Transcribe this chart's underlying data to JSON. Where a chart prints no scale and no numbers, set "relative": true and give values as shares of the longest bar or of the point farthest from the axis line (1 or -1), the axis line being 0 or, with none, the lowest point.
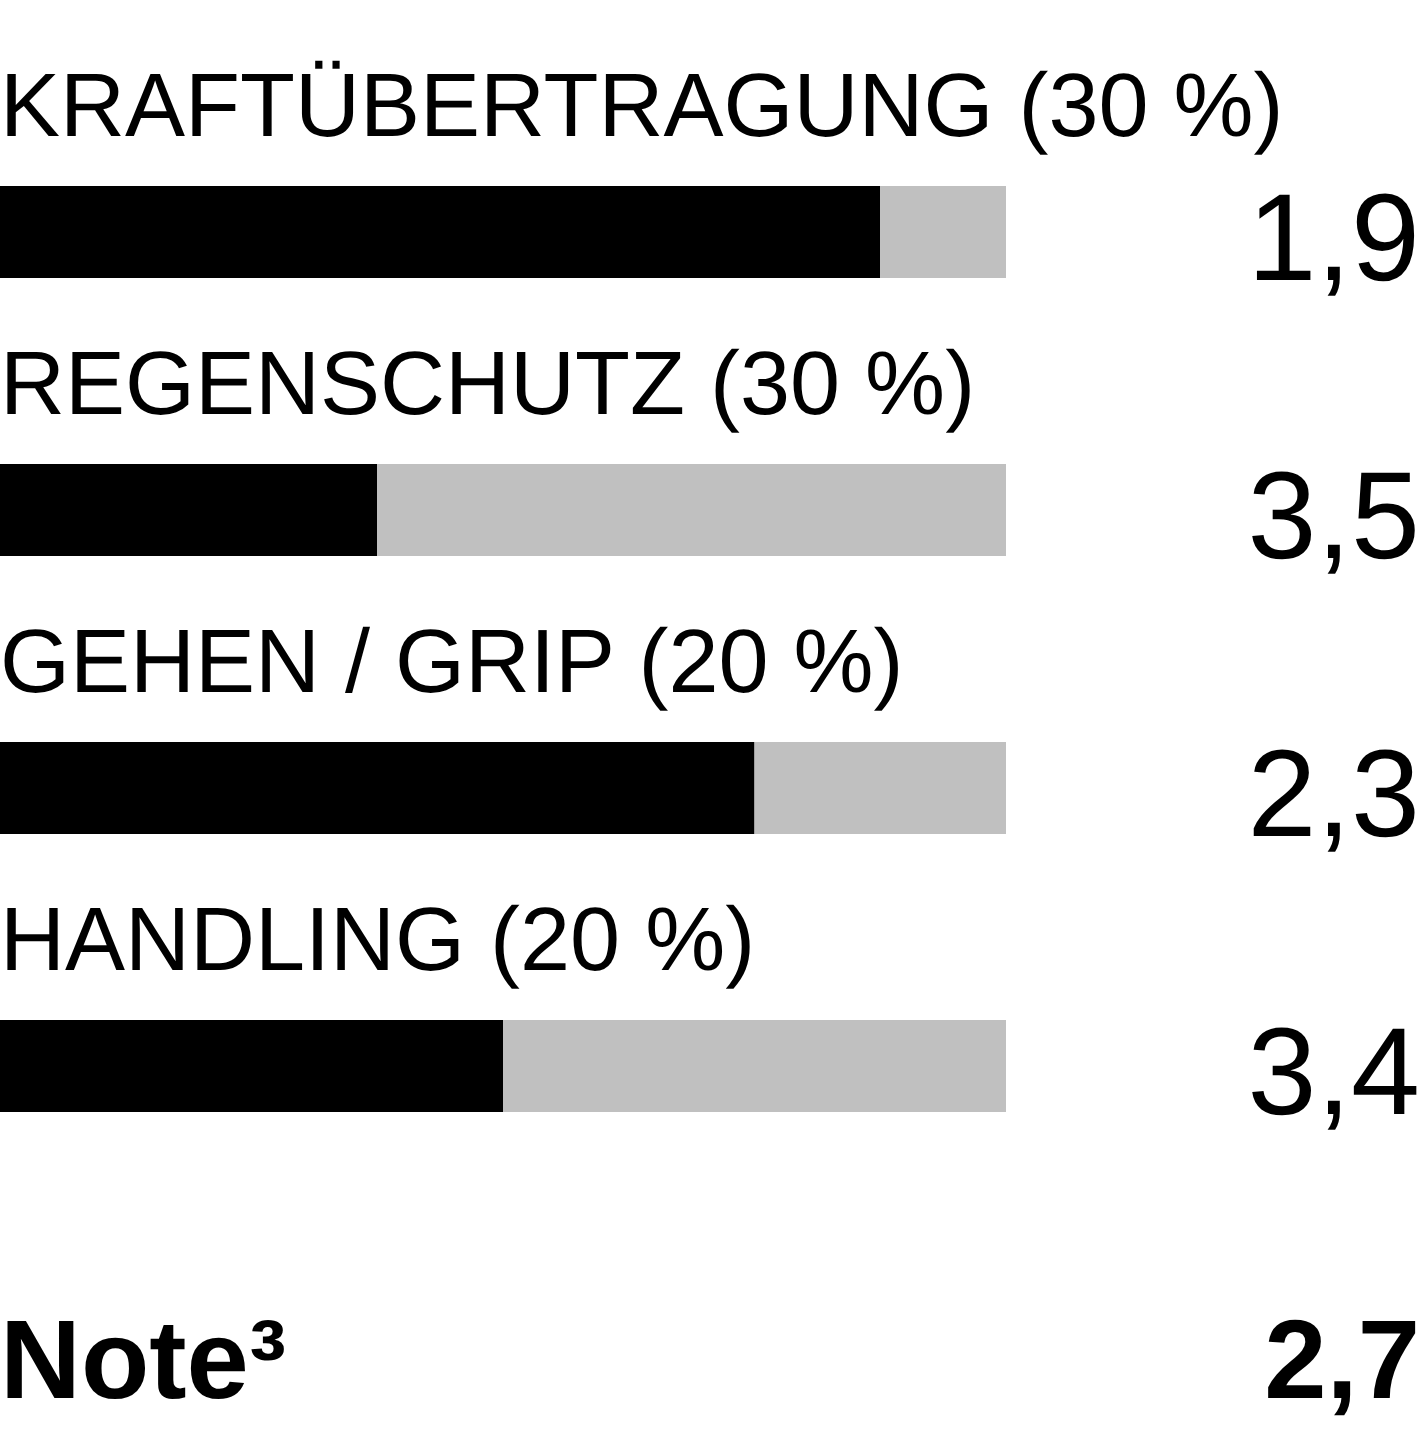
{
  "chart_data": {
    "type": "bar",
    "orientation": "horizontal",
    "stacked": true,
    "relative": true,
    "categories": [
      "KRAFTÜBERTRAGUNG (30 %)",
      "REGENSCHUTZ (30 %)",
      "GEHEN / GRIP (20 %)",
      "HANDLING (20 %)"
    ],
    "series": [
      {
        "color": "#000000",
        "values": [
          0.875,
          0.375,
          0.75,
          0.5
        ]
      },
      {
        "color": "#c0c0c0",
        "values": [
          0.125,
          0.625,
          0.25,
          0.5
        ]
      }
    ],
    "annotations": [
      "1,9",
      "3,5",
      "2,3",
      "3,4",
      "Note³",
      "2,7"
    ]
  }
}
